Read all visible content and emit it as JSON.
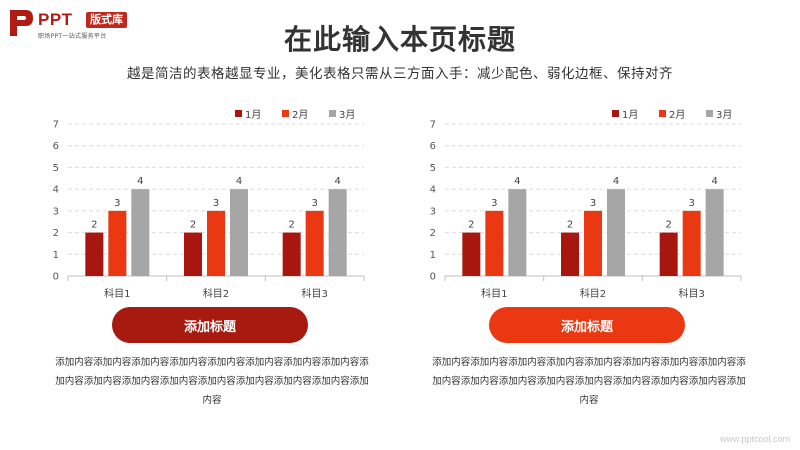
{
  "logo": {
    "ppt": "PPT",
    "badge": "版式库",
    "sub": "职场PPT一站式服务平台"
  },
  "header": {
    "title": "在此输入本页标题",
    "subtitle": "越是简洁的表格越显专业，美化表格只需从三方面入手：减少配色、弱化边框、保持对齐"
  },
  "colors": {
    "series_1": "#a7160f",
    "series_2": "#ea3812",
    "series_3": "#a6a6a6",
    "button_left": "#a71a10",
    "button_right": "#ea3812"
  },
  "panels": [
    {
      "button_label": "添加标题",
      "body": "添加内容添加内容添加内容添加内容添加内容添加内容添加内容添加内容添加内容添加内容添加内容添加内容添加内容添加内容添加内容添加内容添加内容"
    },
    {
      "button_label": "添加标题",
      "body": "添加内容添加内容添加内容添加内容添加内容添加内容添加内容添加内容添加内容添加内容添加内容添加内容添加内容添加内容添加内容添加内容添加内容"
    }
  ],
  "footer": {
    "watermark": "www.pptcool.com"
  },
  "chart_data": [
    {
      "type": "bar",
      "categories": [
        "科目1",
        "科目2",
        "科目3"
      ],
      "series": [
        {
          "name": "1月",
          "values": [
            2,
            2,
            2
          ]
        },
        {
          "name": "2月",
          "values": [
            3,
            3,
            3
          ]
        },
        {
          "name": "3月",
          "values": [
            4,
            4,
            4
          ]
        }
      ],
      "ylim": [
        0,
        7
      ],
      "yticks": [
        0,
        1,
        2,
        3,
        4,
        5,
        6,
        7
      ],
      "grid": true,
      "legend": "top-right",
      "data_labels": true
    },
    {
      "type": "bar",
      "categories": [
        "科目1",
        "科目2",
        "科目3"
      ],
      "series": [
        {
          "name": "1月",
          "values": [
            2,
            2,
            2
          ]
        },
        {
          "name": "2月",
          "values": [
            3,
            3,
            3
          ]
        },
        {
          "name": "3月",
          "values": [
            4,
            4,
            4
          ]
        }
      ],
      "ylim": [
        0,
        7
      ],
      "yticks": [
        0,
        1,
        2,
        3,
        4,
        5,
        6,
        7
      ],
      "grid": true,
      "legend": "top-right",
      "data_labels": true
    }
  ]
}
